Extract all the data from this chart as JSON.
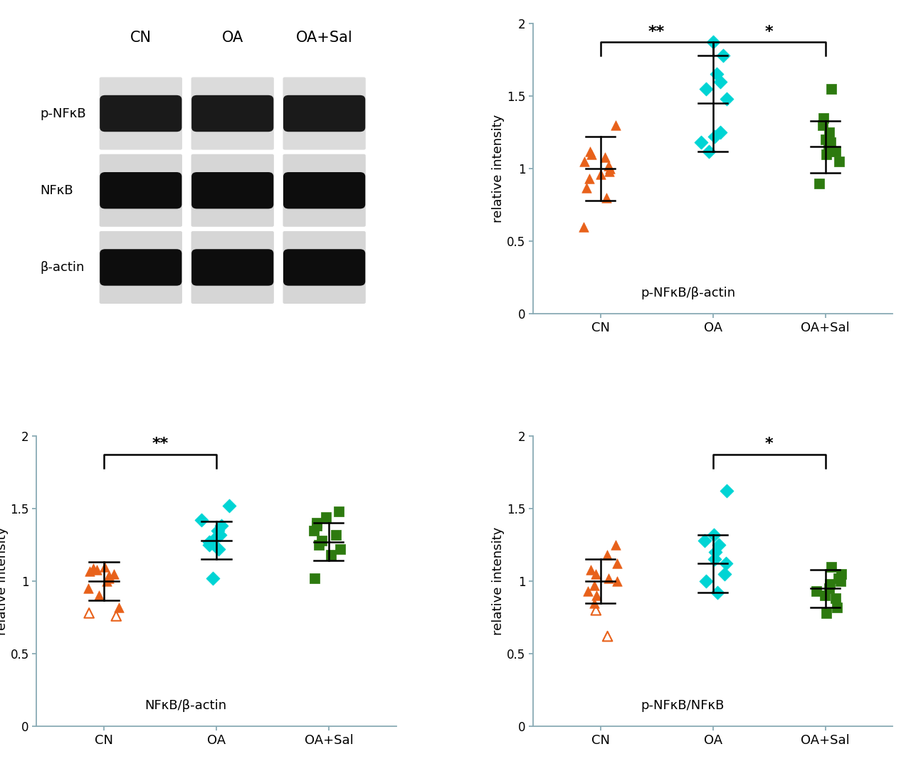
{
  "colors": {
    "CN": "#E8611A",
    "OA": "#00D4D4",
    "OA_Sal": "#2D7A0F"
  },
  "plot1": {
    "title": "p-NFκB/β-actin",
    "ylabel": "relative intensity",
    "xlabels": [
      "CN",
      "OA",
      "OA+Sal"
    ],
    "ylim": [
      0,
      2.0
    ],
    "yticks": [
      0,
      0.5,
      1.0,
      1.5,
      2.0
    ],
    "CN_mean": 1.0,
    "CN_sd": 0.22,
    "OA_mean": 1.45,
    "OA_sd": 0.33,
    "OA_Sal_mean": 1.15,
    "OA_Sal_sd": 0.18,
    "CN_data": [
      1.0,
      1.05,
      1.08,
      1.02,
      0.96,
      1.1,
      1.12,
      0.98,
      0.93,
      0.87,
      0.8,
      1.3,
      0.6
    ],
    "CN_hollow": [
      false,
      false,
      false,
      false,
      false,
      false,
      false,
      false,
      false,
      false,
      false,
      false,
      false
    ],
    "OA_data": [
      1.87,
      1.78,
      1.65,
      1.6,
      1.55,
      1.48,
      1.25,
      1.22,
      1.18,
      1.12
    ],
    "OA_Sal_data": [
      1.55,
      1.35,
      1.3,
      1.25,
      1.2,
      1.18,
      1.15,
      1.12,
      1.1,
      1.05,
      0.9
    ],
    "sig_pairs": [
      [
        0,
        1,
        "**"
      ],
      [
        1,
        2,
        "*"
      ]
    ]
  },
  "plot2": {
    "title": "NFκB/β-actin",
    "ylabel": "relative intensity",
    "xlabels": [
      "CN",
      "OA",
      "OA+Sal"
    ],
    "ylim": [
      0,
      2.0
    ],
    "yticks": [
      0,
      0.5,
      1.0,
      1.5,
      2.0
    ],
    "CN_mean": 1.0,
    "CN_sd": 0.13,
    "OA_mean": 1.28,
    "OA_sd": 0.13,
    "OA_Sal_mean": 1.27,
    "OA_Sal_sd": 0.13,
    "CN_data": [
      1.08,
      1.1,
      1.09,
      1.07,
      1.05,
      1.04,
      1.02,
      1.0,
      0.95,
      0.9,
      0.82,
      0.78,
      0.76
    ],
    "CN_hollow": [
      false,
      false,
      false,
      false,
      false,
      false,
      false,
      false,
      false,
      false,
      false,
      true,
      true
    ],
    "OA_data": [
      1.52,
      1.42,
      1.38,
      1.35,
      1.32,
      1.3,
      1.27,
      1.25,
      1.22,
      1.02
    ],
    "OA_Sal_data": [
      1.48,
      1.44,
      1.4,
      1.38,
      1.35,
      1.32,
      1.28,
      1.25,
      1.22,
      1.18,
      1.02
    ],
    "sig_pairs": [
      [
        0,
        1,
        "**"
      ]
    ]
  },
  "plot3": {
    "title": "p-NFκB/NFκB",
    "ylabel": "relative intensity",
    "xlabels": [
      "CN",
      "OA",
      "OA+Sal"
    ],
    "ylim": [
      0,
      2.0
    ],
    "yticks": [
      0,
      0.5,
      1.0,
      1.5,
      2.0
    ],
    "CN_mean": 1.0,
    "CN_sd": 0.15,
    "OA_mean": 1.12,
    "OA_sd": 0.2,
    "OA_Sal_mean": 0.95,
    "OA_Sal_sd": 0.13,
    "CN_data": [
      1.25,
      1.18,
      1.12,
      1.08,
      1.05,
      1.02,
      1.0,
      0.97,
      0.93,
      0.9,
      0.85,
      0.8,
      0.62
    ],
    "CN_hollow": [
      false,
      false,
      false,
      false,
      false,
      false,
      false,
      false,
      false,
      false,
      false,
      true,
      true
    ],
    "OA_data": [
      1.62,
      1.32,
      1.28,
      1.25,
      1.2,
      1.15,
      1.12,
      1.05,
      1.0,
      0.92
    ],
    "OA_Sal_data": [
      1.1,
      1.05,
      1.02,
      1.0,
      0.98,
      0.95,
      0.93,
      0.9,
      0.88,
      0.82,
      0.78
    ],
    "sig_pairs": [
      [
        1,
        2,
        "*"
      ]
    ]
  },
  "blot_labels_row": [
    "p-NFκB",
    "NFκB",
    "β-actin"
  ],
  "blot_col_labels": [
    "CN",
    "OA",
    "OA+Sal"
  ],
  "axis_color": "#8AABB5",
  "spine_color": "#8AABB5"
}
